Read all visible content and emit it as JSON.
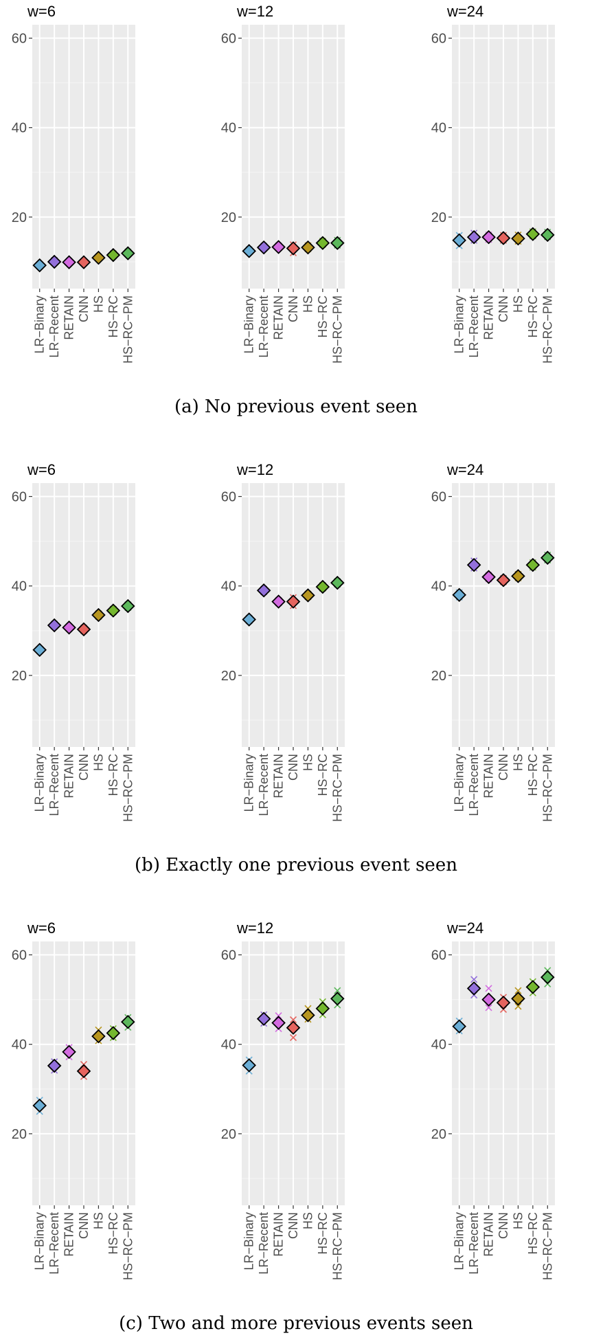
{
  "chart_data": [
    {
      "type": "scatter",
      "caption": "(a) No previous event seen",
      "ylim": [
        4,
        63
      ],
      "yticks": [
        20,
        40,
        60
      ],
      "categories": [
        "LR−Binary",
        "LR−Recent",
        "RETAIN",
        "CNN",
        "HS",
        "HS−RC",
        "HS−RC−PM"
      ],
      "colors": [
        "#6baed6",
        "#9370db",
        "#d36be0",
        "#e5645e",
        "#b8961f",
        "#74b72e",
        "#5cb85c"
      ],
      "panels": [
        {
          "title": "w=6",
          "means": [
            9.2,
            10.0,
            9.9,
            9.9,
            10.9,
            11.5,
            11.9
          ],
          "points": [
            [
              9.1,
              9.4,
              9.2
            ],
            [
              9.9,
              10.3,
              10.1
            ],
            [
              9.8,
              10.1,
              9.9
            ],
            [
              9.7,
              10.1,
              9.9
            ],
            [
              10.7,
              11.1,
              10.9
            ],
            [
              11.3,
              11.8,
              11.6
            ],
            [
              11.7,
              12.2,
              12.0
            ]
          ]
        },
        {
          "title": "w=12",
          "means": [
            12.4,
            13.2,
            13.3,
            13.0,
            13.2,
            14.2,
            14.2
          ],
          "points": [
            [
              12.2,
              12.7,
              12.4
            ],
            [
              13.0,
              13.5,
              13.2
            ],
            [
              13.1,
              13.6,
              13.3
            ],
            [
              12.0,
              13.8,
              13.1
            ],
            [
              12.9,
              13.6,
              13.3
            ],
            [
              13.9,
              14.6,
              14.2
            ],
            [
              13.7,
              14.8,
              14.2
            ]
          ]
        },
        {
          "title": "w=24",
          "means": [
            14.8,
            15.5,
            15.5,
            15.3,
            15.2,
            16.2,
            16.0
          ],
          "points": [
            [
              13.6,
              15.9,
              14.8
            ],
            [
              14.8,
              16.4,
              15.5
            ],
            [
              15.0,
              16.0,
              15.5
            ],
            [
              14.8,
              15.9,
              15.3
            ],
            [
              14.6,
              16.0,
              15.2
            ],
            [
              15.8,
              16.7,
              16.2
            ],
            [
              15.6,
              16.6,
              16.0
            ]
          ]
        }
      ]
    },
    {
      "type": "scatter",
      "caption": "(b) Exactly one previous event seen",
      "ylim": [
        4,
        63
      ],
      "yticks": [
        20,
        40,
        60
      ],
      "categories": [
        "LR−Binary",
        "LR−Recent",
        "RETAIN",
        "CNN",
        "HS",
        "HS−RC",
        "HS−RC−PM"
      ],
      "colors": [
        "#6baed6",
        "#9370db",
        "#d36be0",
        "#e5645e",
        "#b8961f",
        "#74b72e",
        "#5cb85c"
      ],
      "panels": [
        {
          "title": "w=6",
          "means": [
            25.7,
            31.2,
            30.7,
            30.3,
            33.5,
            34.5,
            35.5
          ],
          "points": [
            [
              25.5,
              25.9,
              25.7
            ],
            [
              31.0,
              31.5,
              31.2
            ],
            [
              30.5,
              30.9,
              30.7
            ],
            [
              30.0,
              30.6,
              30.3
            ],
            [
              33.2,
              33.8,
              33.5
            ],
            [
              34.2,
              34.8,
              34.5
            ],
            [
              35.2,
              35.8,
              35.5
            ]
          ]
        },
        {
          "title": "w=12",
          "means": [
            32.5,
            39.0,
            36.5,
            36.5,
            37.9,
            39.8,
            40.7
          ],
          "points": [
            [
              32.2,
              32.8,
              32.5
            ],
            [
              38.7,
              39.3,
              39.0
            ],
            [
              36.2,
              36.8,
              36.5
            ],
            [
              35.6,
              37.4,
              36.5
            ],
            [
              37.6,
              38.2,
              37.9
            ],
            [
              39.5,
              40.1,
              39.8
            ],
            [
              40.4,
              41.0,
              40.7
            ]
          ]
        },
        {
          "title": "w=24",
          "means": [
            38.0,
            44.7,
            42.0,
            41.3,
            42.2,
            44.7,
            46.3
          ],
          "points": [
            [
              37.5,
              38.5,
              38.0
            ],
            [
              44.0,
              45.6,
              44.7
            ],
            [
              41.6,
              42.4,
              42.0
            ],
            [
              40.9,
              41.7,
              41.3
            ],
            [
              41.8,
              42.6,
              42.2
            ],
            [
              44.2,
              45.2,
              44.7
            ],
            [
              45.8,
              46.9,
              46.3
            ]
          ]
        }
      ]
    },
    {
      "type": "scatter",
      "caption": "(c) Two and more previous events seen",
      "ylim": [
        4,
        63
      ],
      "yticks": [
        20,
        40,
        60
      ],
      "categories": [
        "LR−Binary",
        "LR−Recent",
        "RETAIN",
        "CNN",
        "HS",
        "HS−RC",
        "HS−RC−PM"
      ],
      "colors": [
        "#6baed6",
        "#9370db",
        "#d36be0",
        "#e5645e",
        "#b8961f",
        "#74b72e",
        "#5cb85c"
      ],
      "panels": [
        {
          "title": "w=6",
          "means": [
            26.3,
            35.2,
            38.3,
            34.0,
            41.8,
            42.5,
            45.0
          ],
          "points": [
            [
              25.0,
              27.5,
              26.3
            ],
            [
              34.2,
              36.1,
              35.2
            ],
            [
              37.2,
              39.3,
              38.3
            ],
            [
              32.8,
              35.5,
              34.0
            ],
            [
              40.8,
              43.2,
              41.8
            ],
            [
              41.5,
              43.5,
              42.5
            ],
            [
              43.8,
              46.0,
              45.0
            ]
          ]
        },
        {
          "title": "w=12",
          "means": [
            35.3,
            45.7,
            44.8,
            43.7,
            46.5,
            48.0,
            50.2
          ],
          "points": [
            [
              34.0,
              36.5,
              35.3
            ],
            [
              44.7,
              46.6,
              45.7
            ],
            [
              43.5,
              46.4,
              44.8
            ],
            [
              41.5,
              45.5,
              43.7
            ],
            [
              45.6,
              48.0,
              46.5
            ],
            [
              46.6,
              49.5,
              48.0
            ],
            [
              48.8,
              52.0,
              50.2
            ]
          ]
        },
        {
          "title": "w=24",
          "means": [
            44.0,
            52.5,
            50.0,
            49.3,
            50.2,
            52.8,
            55.0
          ],
          "points": [
            [
              43.0,
              45.2,
              44.0
            ],
            [
              51.0,
              54.5,
              52.5
            ],
            [
              48.2,
              52.5,
              50.0
            ],
            [
              47.8,
              50.5,
              49.3
            ],
            [
              48.5,
              52.0,
              50.2
            ],
            [
              51.5,
              54.0,
              52.8
            ],
            [
              53.5,
              56.5,
              55.0
            ]
          ]
        }
      ]
    }
  ]
}
